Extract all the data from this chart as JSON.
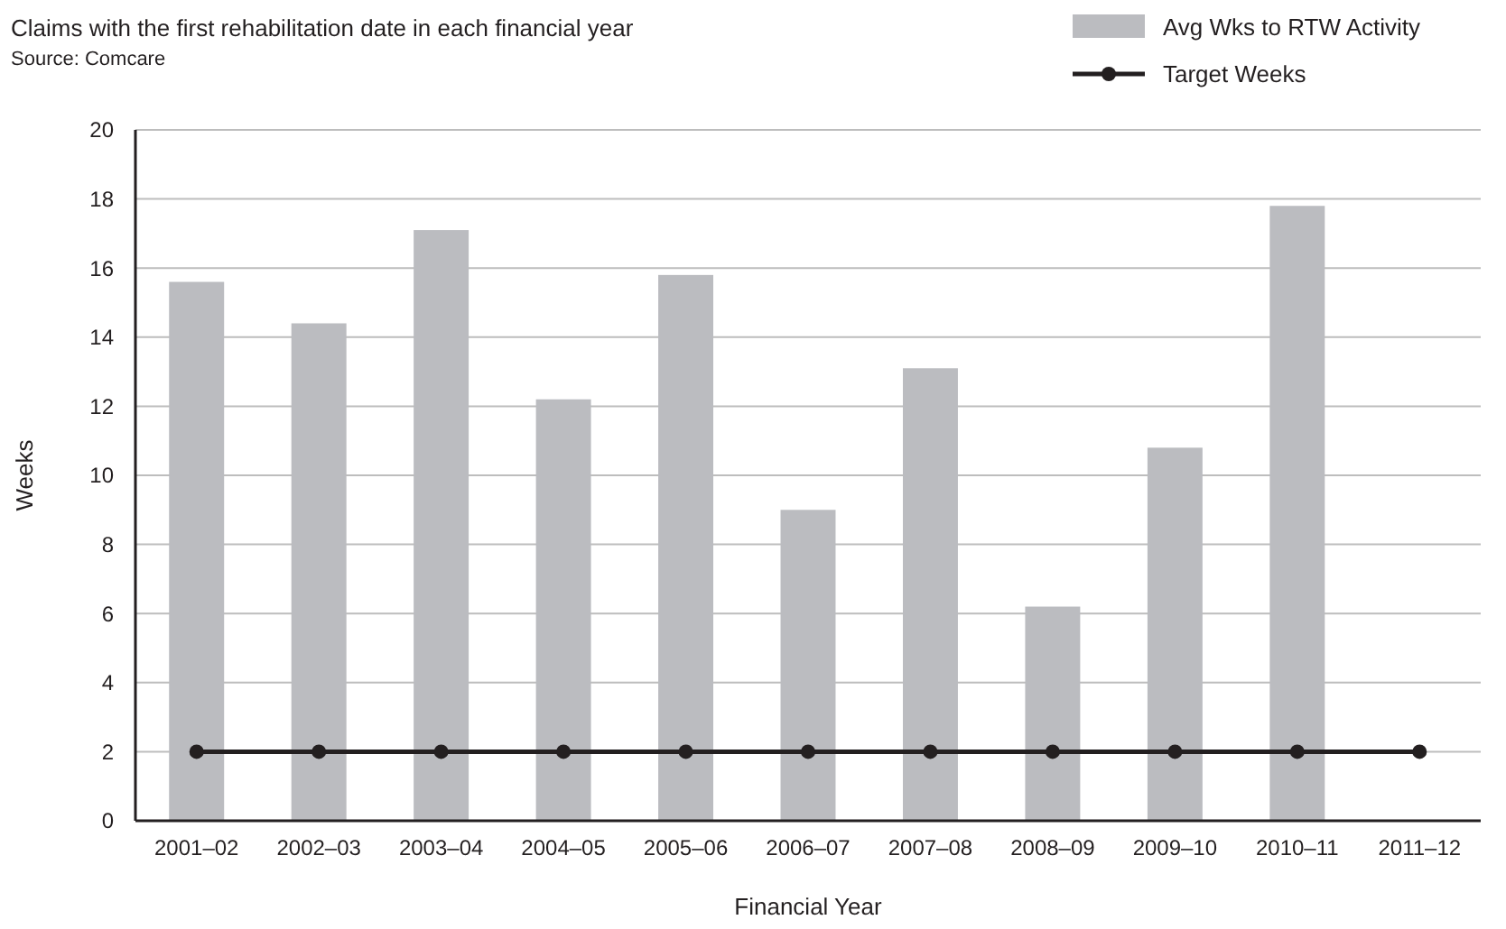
{
  "chart_data": {
    "type": "bar",
    "subtitle": "Claims with the first rehabilitation date in each financial year",
    "annotations": [
      "Source: Comcare"
    ],
    "xlabel": "Financial Year",
    "ylabel": "Weeks",
    "categories": [
      "2001–02",
      "2002–03",
      "2003–04",
      "2004–05",
      "2005–06",
      "2006–07",
      "2007–08",
      "2008–09",
      "2009–10",
      "2010–11",
      "2011–12"
    ],
    "series": [
      {
        "name": "Avg Wks to RTW Activity",
        "color": "#bbbcc0",
        "values": [
          15.6,
          14.4,
          17.1,
          12.2,
          15.8,
          9.0,
          13.1,
          6.2,
          10.8,
          17.8,
          null
        ]
      },
      {
        "name": "Target Weeks",
        "type": "line",
        "color": "#231f20",
        "marker": "circle",
        "values": [
          2,
          2,
          2,
          2,
          2,
          2,
          2,
          2,
          2,
          2,
          2
        ]
      }
    ],
    "ylim": [
      0,
      20
    ],
    "yticks": [
      0,
      2,
      4,
      6,
      8,
      10,
      12,
      14,
      16,
      18,
      20
    ],
    "grid": "y",
    "legend": "top right"
  }
}
